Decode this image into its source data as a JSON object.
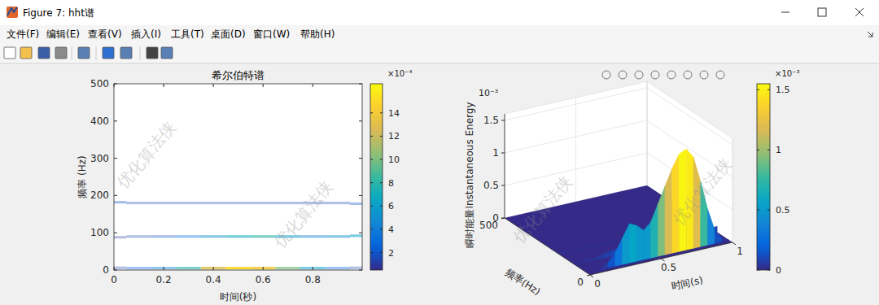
{
  "window": {
    "title": "Figure 7: hht谱",
    "menus": [
      "文件(F)",
      "编辑(E)",
      "查看(V)",
      "插入(I)",
      "工具(T)",
      "桌面(D)",
      "窗口(W)",
      "帮助(H)"
    ]
  },
  "watermark": "优化算法侠",
  "chart_data": [
    {
      "type": "spectrum",
      "title": "希尔伯特谱",
      "x_label": "时间(秒)",
      "y_label": "频率 (Hz)",
      "xlim": [
        0,
        0.999
      ],
      "xticks": [
        0,
        0.2,
        0.4,
        0.6,
        0.8
      ],
      "ylim": [
        0,
        500
      ],
      "yticks": [
        0,
        100,
        200,
        300,
        400,
        500
      ],
      "x": [
        0,
        0.1,
        0.2,
        0.3,
        0.4,
        0.5,
        0.6,
        0.7,
        0.8,
        0.9,
        0.999
      ],
      "series": [
        {
          "values": [
            182,
            180,
            180,
            180,
            180,
            180,
            180,
            180,
            180,
            180,
            178
          ],
          "energy": [
            2,
            1.5,
            1.5,
            1.5,
            1.5,
            1.5,
            1.5,
            1.5,
            1.5,
            1.5,
            2
          ]
        },
        {
          "values": [
            88,
            90,
            90,
            90,
            90,
            90,
            90,
            90,
            90,
            90,
            92
          ],
          "energy": [
            1,
            1.5,
            2,
            3,
            5,
            7,
            8,
            6,
            4,
            5,
            6
          ]
        },
        {
          "values": [
            6,
            5,
            5,
            5,
            5,
            5,
            5,
            5,
            5,
            5,
            6
          ],
          "energy": [
            1.5,
            2.5,
            4.5,
            8,
            13,
            15,
            14,
            10,
            6,
            3,
            1.5
          ]
        }
      ],
      "colorbar": {
        "lim": [
          0.5,
          16.5
        ],
        "ticks": [
          2,
          4,
          6,
          8,
          10,
          12,
          14
        ],
        "label": "×10⁻⁴"
      }
    },
    {
      "type": "surface",
      "x_label": "时间(s)",
      "y_label": "频率(Hz)",
      "z_label": "瞬时能量Instantaneous Energy",
      "z_exponent": "10⁻³",
      "xlim": [
        0,
        1
      ],
      "xticks": [
        0,
        0.5,
        1
      ],
      "ylim": [
        0,
        500
      ],
      "yticks": [
        0,
        500
      ],
      "zlim": [
        0,
        1.6
      ],
      "zticks": [
        0,
        0.5,
        1,
        1.5
      ],
      "grid": true,
      "x": [
        0,
        0.05,
        0.1,
        0.15,
        0.2,
        0.25,
        0.3,
        0.35,
        0.4,
        0.45,
        0.5,
        0.55,
        0.6,
        0.65,
        0.7,
        0.75,
        0.8,
        0.85,
        0.9,
        0.95,
        1
      ],
      "series": [
        {
          "frequency": 180,
          "values": [
            0.03,
            0.02,
            0.02,
            0.02,
            0.02,
            0.02,
            0.02,
            0.02,
            0.02,
            0.02,
            0.02,
            0.02,
            0.02,
            0.02,
            0.02,
            0.02,
            0.02,
            0.02,
            0.02,
            0.02,
            0.03
          ]
        },
        {
          "frequency": 90,
          "values": [
            0.01,
            0.02,
            0.03,
            0.04,
            0.06,
            0.08,
            0.1,
            0.12,
            0.13,
            0.13,
            0.12,
            0.1,
            0.08,
            0.06,
            0.05,
            0.05,
            0.06,
            0.07,
            0.08,
            0.08,
            0.09
          ]
        },
        {
          "frequency": 20,
          "values": [
            0,
            0,
            0.02,
            0.08,
            0.2,
            0.4,
            0.6,
            0.55,
            0.45,
            0.55,
            0.8,
            1.05,
            1.3,
            1.5,
            1.55,
            1.4,
            1.0,
            0.55,
            0.2,
            0.05,
            0
          ]
        }
      ],
      "colorbar": {
        "lim": [
          0,
          1.55
        ],
        "ticks": [
          0,
          0.5,
          1,
          1.5
        ],
        "label": "×10⁻³"
      }
    }
  ]
}
